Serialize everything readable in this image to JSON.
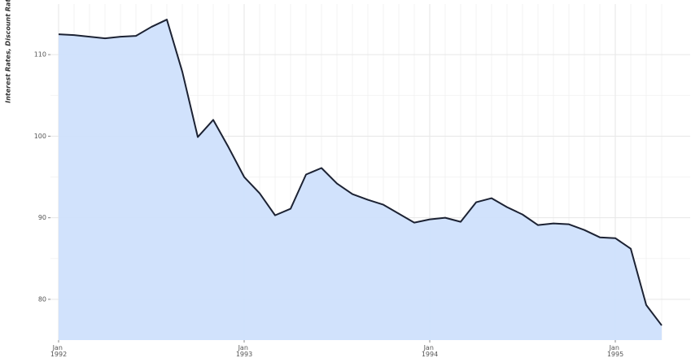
{
  "chart_data": {
    "type": "area",
    "y_label": "Interest Rates, Discount Rate",
    "x": [
      "1992-01",
      "1992-02",
      "1992-03",
      "1992-04",
      "1992-05",
      "1992-06",
      "1992-07",
      "1992-08",
      "1992-09",
      "1992-10",
      "1992-11",
      "1992-12",
      "1993-01",
      "1993-02",
      "1993-03",
      "1993-04",
      "1993-05",
      "1993-06",
      "1993-07",
      "1993-08",
      "1993-09",
      "1993-10",
      "1993-11",
      "1993-12",
      "1994-01",
      "1994-02",
      "1994-03",
      "1994-04",
      "1994-05",
      "1994-06",
      "1994-07",
      "1994-08",
      "1994-09",
      "1994-10",
      "1994-11",
      "1994-12",
      "1995-01",
      "1995-02",
      "1995-03",
      "1995-04"
    ],
    "series": [
      {
        "color": "#1c2233",
        "fill": "#cfe0fc",
        "values": [
          112.5,
          112.4,
          112.2,
          112.0,
          112.2,
          112.3,
          113.4,
          114.3,
          107.9,
          99.9,
          102.0,
          98.6,
          95.0,
          93.0,
          90.3,
          91.1,
          95.3,
          96.1,
          94.2,
          92.9,
          92.2,
          91.6,
          90.5,
          89.4,
          89.8,
          90.0,
          89.5,
          91.9,
          92.4,
          91.3,
          90.4,
          89.1,
          89.3,
          89.2,
          88.5,
          87.6,
          87.5,
          86.2,
          79.3,
          76.8
        ]
      }
    ],
    "xlim": [
      "1992-01",
      "1995-04"
    ],
    "xticks": [
      {
        "value": "1992-01",
        "label": "Jan 1992"
      },
      {
        "value": "1993-01",
        "label": "Jan 1993"
      },
      {
        "value": "1994-01",
        "label": "Jan 1994"
      },
      {
        "value": "1995-01",
        "label": "Jan 1995"
      }
    ],
    "ylim": [
      75,
      116
    ],
    "yticks": [
      80,
      90,
      100,
      110
    ],
    "grid": true
  }
}
